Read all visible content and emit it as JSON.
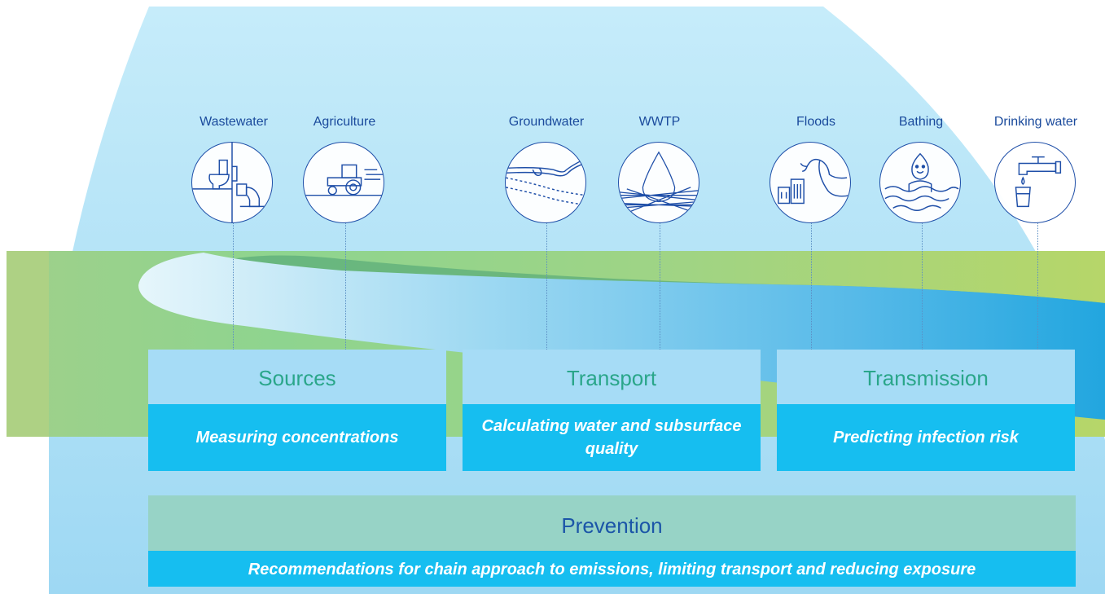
{
  "icons": [
    {
      "label": "Wastewater",
      "icon": "toilet-pipe-icon"
    },
    {
      "label": "Agriculture",
      "icon": "tractor-icon"
    },
    {
      "label": "Groundwater",
      "icon": "groundwater-layers-icon"
    },
    {
      "label": "WWTP",
      "icon": "water-drop-filter-icon"
    },
    {
      "label": "Floods",
      "icon": "flood-wave-icon"
    },
    {
      "label": "Bathing",
      "icon": "swimmer-icon"
    },
    {
      "label": "Drinking water",
      "icon": "tap-glass-icon"
    }
  ],
  "stages": [
    {
      "title": "Sources",
      "description": "Measuring concentrations"
    },
    {
      "title": "Transport",
      "description": "Calculating water and subsurface quality"
    },
    {
      "title": "Transmission",
      "description": "Predicting infection risk"
    }
  ],
  "prevention": {
    "title": "Prevention",
    "description": "Recommendations for chain approach to emissions, limiting transport and reducing exposure"
  },
  "colors": {
    "sky": "#c6ecfa",
    "land": "#8fd08f",
    "river": "#2aa8e0",
    "stage_title_bg": "#a6dcf6",
    "stage_title_text": "#2aa68a",
    "stage_desc_bg": "#16bef0",
    "prevention_title_bg": "#97d3c6",
    "prevention_title_text": "#1b55a8",
    "icon_stroke": "#1f4fa8",
    "label_text": "#1a4a9c"
  }
}
